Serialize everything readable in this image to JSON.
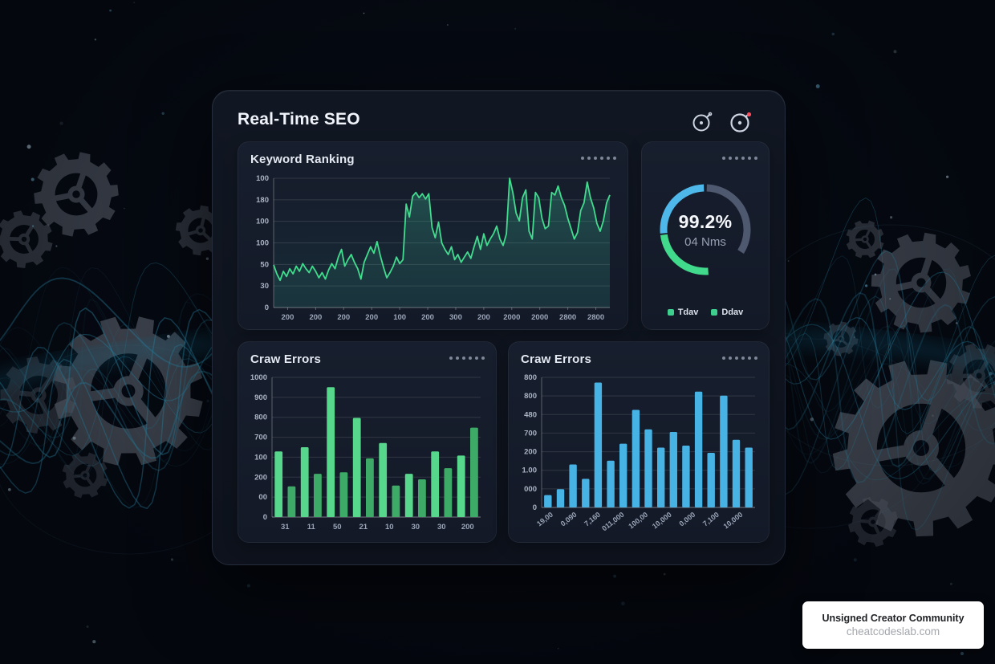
{
  "dashboard": {
    "title": "Real-Time SEO"
  },
  "watermark": {
    "line1": "Unsigned Creator Community",
    "line2": "cheatcodeslab.com"
  },
  "chart_data": [
    {
      "type": "line",
      "title": "Keyword Ranking",
      "ylim": [
        0,
        100
      ],
      "grid": true,
      "legend_position": "none",
      "y_ticks": [
        "100",
        "180",
        "100",
        "100",
        "50",
        "30",
        "0"
      ],
      "x_ticks": [
        "200",
        "200",
        "200",
        "200",
        "100",
        "200",
        "300",
        "200",
        "2000",
        "2000",
        "2800",
        "2800"
      ],
      "line_color": "#42dc8e",
      "area_top": "rgba(62,200,160,0.30)",
      "area_bottom": "rgba(62,200,160,0.02)",
      "points": [
        33,
        26,
        21,
        28,
        24,
        30,
        26,
        32,
        28,
        34,
        30,
        27,
        32,
        28,
        23,
        27,
        22,
        29,
        34,
        30,
        39,
        45,
        32,
        37,
        41,
        35,
        30,
        22,
        35,
        41,
        47,
        42,
        51,
        40,
        31,
        23,
        27,
        32,
        39,
        34,
        37,
        80,
        70,
        86,
        89,
        85,
        88,
        84,
        88,
        62,
        54,
        66,
        50,
        45,
        41,
        47,
        37,
        41,
        35,
        39,
        43,
        38,
        47,
        55,
        45,
        57,
        48,
        53,
        57,
        63,
        53,
        48,
        57,
        100,
        89,
        73,
        67,
        85,
        91,
        59,
        53,
        89,
        85,
        69,
        61,
        63,
        89,
        87,
        94,
        85,
        79,
        69,
        61,
        53,
        58,
        75,
        81,
        97,
        85,
        77,
        65,
        59,
        67,
        81,
        87
      ]
    },
    {
      "type": "gauge",
      "value": "99.2%",
      "subtitle": "04 Nms",
      "segments": [
        {
          "label": "remaining",
          "color": "#4e586e",
          "start": 2,
          "end": 122
        },
        {
          "label": "green",
          "color": "#41d98b",
          "start": 176,
          "end": 263
        },
        {
          "label": "blue",
          "color": "#4fb8ea",
          "start": 265,
          "end": 358
        }
      ],
      "legend": [
        {
          "label": "Tdav",
          "color": "#3ecf8e"
        },
        {
          "label": "Ddav",
          "color": "#3ecf8e"
        }
      ]
    },
    {
      "type": "bar",
      "title": "Craw Errors",
      "ylim": [
        0,
        1000
      ],
      "grid": true,
      "rotate_x": 0,
      "y_ticks": [
        "1000",
        "900",
        "800",
        "700",
        "100",
        "200",
        "00",
        "0"
      ],
      "x_ticks": [
        "31",
        "11",
        "50",
        "21",
        "10",
        "30",
        "30",
        "200"
      ],
      "values": [
        470,
        220,
        500,
        310,
        930,
        320,
        710,
        420,
        530,
        225,
        310,
        270,
        470,
        350,
        440,
        640
      ],
      "bar_colors": [
        "#57d78c",
        "#3dab67"
      ]
    },
    {
      "type": "bar",
      "title": "Craw Errors",
      "ylim": [
        0,
        1000
      ],
      "grid": true,
      "rotate_x": -38,
      "y_ticks": [
        "800",
        "800",
        "480",
        "700",
        "200",
        "1.00",
        "000",
        "0"
      ],
      "x_ticks": [
        "19,00",
        "0,090",
        "7,160",
        "011,000",
        "100,00",
        "10,000",
        "0,000",
        "7,100",
        "10,000"
      ],
      "values": [
        95,
        140,
        330,
        220,
        960,
        360,
        490,
        750,
        600,
        460,
        580,
        475,
        890,
        420,
        860,
        520,
        460
      ],
      "bar_colors": [
        "#47b2e4"
      ]
    }
  ]
}
